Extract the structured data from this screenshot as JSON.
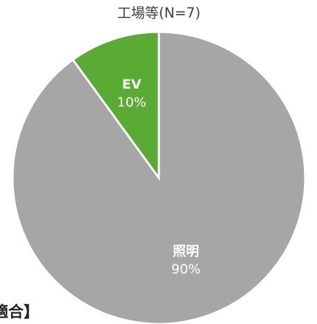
{
  "chart_data": {
    "type": "pie",
    "title": "工場等(N=7)",
    "categories": [
      "EV",
      "照明"
    ],
    "values": [
      10,
      90
    ],
    "value_labels": [
      "10%",
      "90%"
    ],
    "colors": [
      "#5aab34",
      "#a6a6a6"
    ],
    "direction": "counterclockwise",
    "annotation": "適合】"
  }
}
